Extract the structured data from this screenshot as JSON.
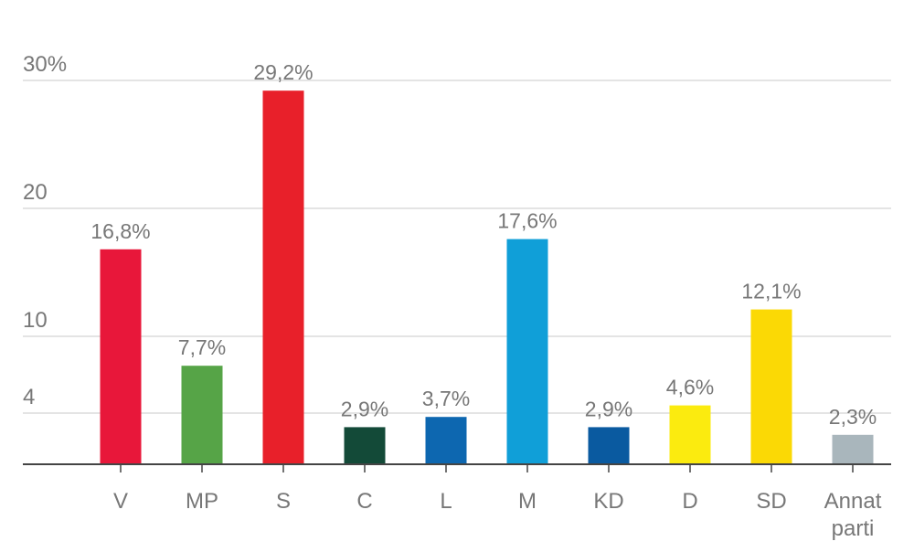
{
  "chart_data": {
    "type": "bar",
    "categories": [
      "V",
      "MP",
      "S",
      "C",
      "L",
      "M",
      "KD",
      "D",
      "SD",
      "Annat parti"
    ],
    "values": [
      16.8,
      7.7,
      29.2,
      2.9,
      3.7,
      17.6,
      2.9,
      4.6,
      12.1,
      2.3
    ],
    "data_labels": [
      "16,8%",
      "7,7%",
      "29,2%",
      "2,9%",
      "3,7%",
      "17,6%",
      "2,9%",
      "4,6%",
      "12,1%",
      "2,3%"
    ],
    "colors": [
      "#e8173a",
      "#56a447",
      "#e8202a",
      "#134a38",
      "#0d67b0",
      "#109fd8",
      "#0a5aa0",
      "#fbeb0f",
      "#fbd905",
      "#a9b6bc"
    ],
    "yticks": [
      {
        "value": 30,
        "label": "30%"
      },
      {
        "value": 20,
        "label": "20"
      },
      {
        "value": 10,
        "label": "10"
      },
      {
        "value": 4,
        "label": "4"
      }
    ],
    "ylim": [
      0,
      30
    ],
    "grid": true,
    "legend": "none",
    "title": "",
    "xlabel": "",
    "ylabel": ""
  }
}
